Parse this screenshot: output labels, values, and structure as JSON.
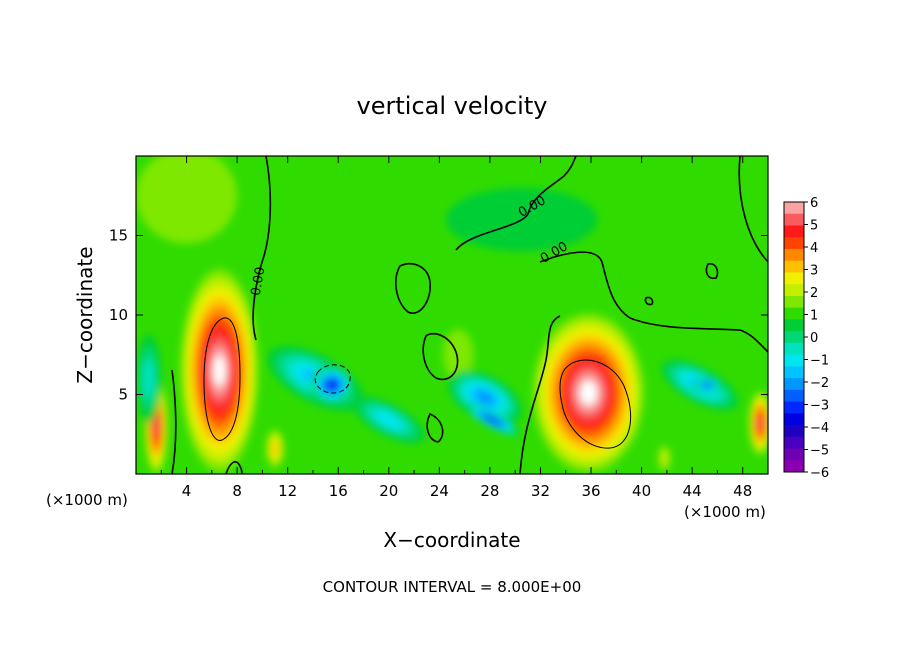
{
  "chart_data": {
    "type": "heatmap",
    "title": "vertical velocity",
    "xlabel": "X−coordinate",
    "ylabel": "Z−coordinate",
    "x_unit": "(×1000 m)",
    "x_unit_right": "(×1000 m)",
    "xlim": [
      0,
      50
    ],
    "ylim": [
      0,
      20
    ],
    "x_ticks": [
      "4",
      "8",
      "12",
      "16",
      "20",
      "24",
      "28",
      "32",
      "36",
      "40",
      "44",
      "48"
    ],
    "y_ticks": [
      "5",
      "10",
      "15"
    ],
    "colorbar": {
      "range": [
        -6,
        6
      ],
      "labels": [
        "6",
        "5",
        "4",
        "3",
        "2",
        "1",
        "0",
        "−1",
        "−2",
        "−3",
        "−4",
        "−5",
        "−6"
      ],
      "colors": [
        "#f9a3a3",
        "#f95c5c",
        "#ff1a1a",
        "#ff4400",
        "#ff8800",
        "#ffc000",
        "#f0f000",
        "#c4f000",
        "#7ee800",
        "#30dc00",
        "#00ce36",
        "#00d878",
        "#00e2c0",
        "#00e6f0",
        "#00c4ff",
        "#0098ff",
        "#0060ff",
        "#0028ff",
        "#0000e0",
        "#2000c0",
        "#4a00c0",
        "#7000b4",
        "#8a00b0"
      ]
    },
    "contour_labels": [
      "0.00",
      "0.00",
      "0.00"
    ],
    "footer": "CONTOUR INTERVAL = 8.000E+00",
    "features": [
      {
        "kind": "updraft",
        "x": 6.6,
        "z": 6.5,
        "rx": 3.1,
        "rz": 6.4,
        "w": 12
      },
      {
        "kind": "updraft",
        "x": 35.8,
        "z": 5.1,
        "rx": 4.4,
        "rz": 5.0,
        "w": 12
      },
      {
        "kind": "updraft",
        "x": 1.6,
        "z": 3.0,
        "rx": 0.9,
        "rz": 3.0,
        "w": 8
      },
      {
        "kind": "updraft",
        "x": 49.4,
        "z": 3.2,
        "rx": 0.9,
        "rz": 2.0,
        "w": 8
      },
      {
        "kind": "updraft",
        "x": 11.0,
        "z": 1.6,
        "rx": 0.7,
        "rz": 1.2,
        "w": 4
      },
      {
        "kind": "updraft",
        "x": 41.8,
        "z": 1.0,
        "rx": 0.5,
        "rz": 0.8,
        "w": 2
      },
      {
        "kind": "warm",
        "x": 4.0,
        "z": 17.5,
        "rx": 4.0,
        "rz": 3.0,
        "w": 1.4
      },
      {
        "kind": "warm",
        "x": 25.5,
        "z": 7.5,
        "rx": 1.2,
        "rz": 1.6,
        "w": 1.2
      },
      {
        "kind": "downdraft",
        "x": 14.2,
        "z": 6.0,
        "rx": 4.2,
        "rz": 1.5,
        "w": -4.5
      },
      {
        "kind": "downdraft",
        "x": 15.5,
        "z": 5.6,
        "rx": 1.7,
        "rz": 1.2,
        "w": -9
      },
      {
        "kind": "downdraft",
        "x": 20.0,
        "z": 3.4,
        "rx": 3.2,
        "rz": 1.0,
        "w": -4.2
      },
      {
        "kind": "downdraft",
        "x": 27.6,
        "z": 4.8,
        "rx": 3.2,
        "rz": 1.4,
        "w": -5.5
      },
      {
        "kind": "downdraft",
        "x": 28.2,
        "z": 3.4,
        "rx": 2.4,
        "rz": 0.5,
        "w": -9
      },
      {
        "kind": "downdraft",
        "x": 44.6,
        "z": 5.6,
        "rx": 3.4,
        "rz": 1.1,
        "w": -4.6
      },
      {
        "kind": "downdraft",
        "x": 45.2,
        "z": 5.6,
        "rx": 1.2,
        "rz": 0.45,
        "w": -8
      },
      {
        "kind": "downdraft",
        "x": 1.0,
        "z": 6.0,
        "rx": 1.0,
        "rz": 2.8,
        "w": -3.2
      },
      {
        "kind": "sink",
        "x": 30.5,
        "z": 16.0,
        "rx": 6.0,
        "rz": 2.0,
        "w": -1.2
      }
    ]
  }
}
